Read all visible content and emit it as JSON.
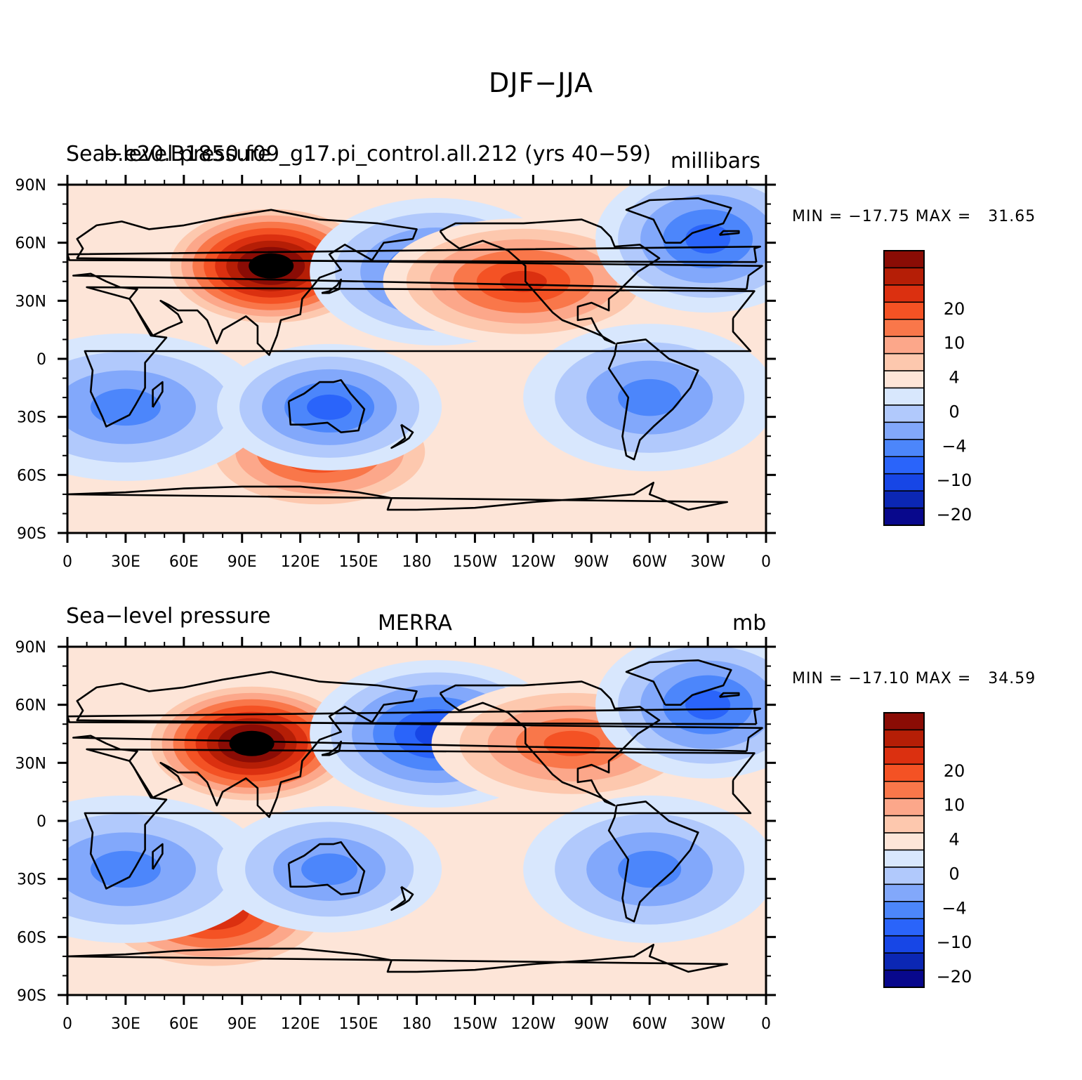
{
  "title": "DJF−JJA",
  "palette": [
    "#08088c",
    "#0b27b4",
    "#1746e6",
    "#2a64fa",
    "#4c86fb",
    "#82a8fb",
    "#b1c9fc",
    "#d8e7fd",
    "#fde5d8",
    "#fdc8ae",
    "#fca78a",
    "#f9774a",
    "#f45224",
    "#db3010",
    "#b51e06",
    "#8a0c05"
  ],
  "colorbar_labels": [
    "20",
    "10",
    "4",
    "0",
    "−4",
    "−10",
    "−20"
  ],
  "x_ticks": [
    "0",
    "30E",
    "60E",
    "90E",
    "120E",
    "150E",
    "180",
    "150W",
    "120W",
    "90W",
    "60W",
    "30W",
    "0"
  ],
  "y_ticks": [
    "90N",
    "60N",
    "30N",
    "0",
    "30S",
    "60S",
    "90S"
  ],
  "panels": [
    {
      "left_title": "Sea−level pressure",
      "center_title": "b.e20.B1850.f09_g17.pi_control.all.212 (yrs 40−59)",
      "right_title": "millibars",
      "minmax": "MIN = −17.75 MAX =   31.65"
    },
    {
      "left_title": "Sea−level pressure",
      "center_title": "MERRA",
      "right_title": "mb",
      "minmax": "MIN = −17.10 MAX =   34.59"
    }
  ],
  "chart_data": [
    {
      "type": "heatmap",
      "title": "DJF−JJA",
      "dataset": "b.e20.B1850.f09_g17.pi_control.all.212 (yrs 40−59)",
      "variable": "Sea−level pressure",
      "units": "millibars",
      "min": -17.75,
      "max": 31.65,
      "contour_levels": [
        -25,
        -20,
        -15,
        -10,
        -8,
        -6,
        -4,
        -2,
        0,
        2,
        4,
        6,
        8,
        10,
        15,
        20,
        25
      ],
      "x_range": [
        0,
        360
      ],
      "y_range": [
        -90,
        90
      ],
      "features": [
        {
          "lon": 105,
          "lat": 48,
          "value": 30
        },
        {
          "lon": 190,
          "lat": 45,
          "value": -15
        },
        {
          "lon": 235,
          "lat": 40,
          "value": 8
        },
        {
          "lon": 330,
          "lat": 62,
          "value": -12
        },
        {
          "lon": 130,
          "lat": -48,
          "value": 9
        },
        {
          "lon": 30,
          "lat": -25,
          "value": -10
        },
        {
          "lon": 135,
          "lat": -25,
          "value": -11
        },
        {
          "lon": 300,
          "lat": -20,
          "value": -9
        }
      ]
    },
    {
      "type": "heatmap",
      "title": "DJF−JJA",
      "dataset": "MERRA",
      "variable": "Sea−level pressure",
      "units": "mb",
      "min": -17.1,
      "max": 34.59,
      "contour_levels": [
        -25,
        -20,
        -15,
        -10,
        -8,
        -6,
        -4,
        -2,
        0,
        2,
        4,
        6,
        8,
        10,
        15,
        20,
        25
      ],
      "x_range": [
        0,
        360
      ],
      "y_range": [
        -90,
        90
      ],
      "features": [
        {
          "lon": 95,
          "lat": 40,
          "value": 33
        },
        {
          "lon": 190,
          "lat": 45,
          "value": -17
        },
        {
          "lon": 260,
          "lat": 40,
          "value": 6
        },
        {
          "lon": 330,
          "lat": 60,
          "value": -12
        },
        {
          "lon": 75,
          "lat": -47,
          "value": 10
        },
        {
          "lon": 30,
          "lat": -25,
          "value": -9
        },
        {
          "lon": 135,
          "lat": -25,
          "value": -9
        },
        {
          "lon": 300,
          "lat": -25,
          "value": -9
        }
      ]
    }
  ]
}
